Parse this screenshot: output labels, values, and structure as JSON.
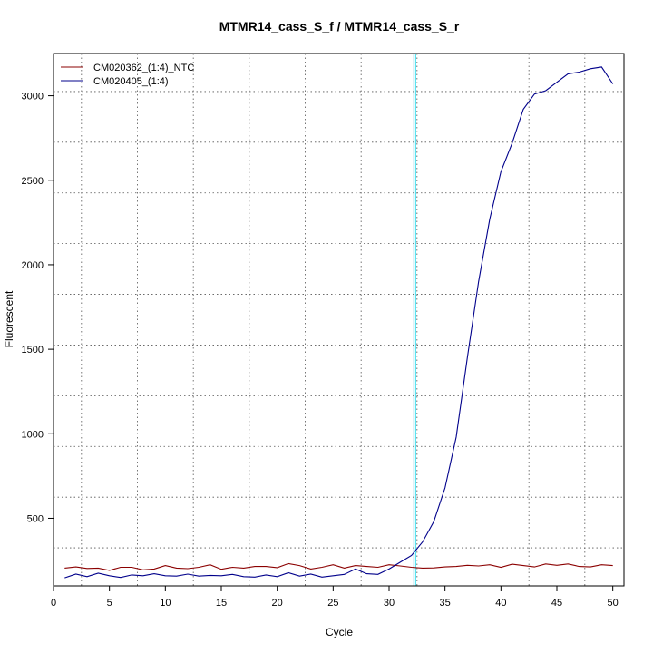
{
  "chart_data": {
    "type": "line",
    "title": "MTMR14_cass_S_f / MTMR14_cass_S_r",
    "xlabel": "Cycle",
    "ylabel": "Fluorescent",
    "xlim": [
      0,
      51
    ],
    "ylim": [
      100,
      3250
    ],
    "x_ticks": [
      "0",
      "5",
      "10",
      "15",
      "20",
      "25",
      "30",
      "35",
      "40",
      "45",
      "50"
    ],
    "y_ticks": [
      "500",
      "1000",
      "1500",
      "2000",
      "2500",
      "3000"
    ],
    "grid": true,
    "legend_position": "top-left",
    "threshold_cycle": 32.3,
    "x": [
      1,
      2,
      3,
      4,
      5,
      6,
      7,
      8,
      9,
      10,
      11,
      12,
      13,
      14,
      15,
      16,
      17,
      18,
      19,
      20,
      21,
      22,
      23,
      24,
      25,
      26,
      27,
      28,
      29,
      30,
      31,
      32,
      33,
      34,
      35,
      36,
      37,
      38,
      39,
      40,
      41,
      42,
      43,
      44,
      45,
      46,
      47,
      48,
      49,
      50
    ],
    "series": [
      {
        "name": "CM020362_(1:4)_NTC",
        "color": "#8b0000",
        "values": [
          205,
          212,
          203,
          205,
          192,
          210,
          210,
          195,
          200,
          220,
          205,
          202,
          210,
          225,
          198,
          210,
          205,
          215,
          215,
          208,
          232,
          220,
          200,
          210,
          225,
          205,
          220,
          215,
          210,
          225,
          218,
          210,
          205,
          206,
          212,
          215,
          222,
          218,
          225,
          210,
          228,
          220,
          212,
          230,
          222,
          230,
          215,
          212,
          225,
          220
        ]
      },
      {
        "name": "CM020405_(1:4)",
        "color": "#00008b",
        "values": [
          148,
          170,
          155,
          175,
          160,
          150,
          165,
          160,
          172,
          160,
          158,
          170,
          158,
          162,
          160,
          168,
          155,
          152,
          165,
          155,
          178,
          158,
          170,
          152,
          160,
          168,
          200,
          172,
          168,
          200,
          240,
          280,
          360,
          480,
          680,
          980,
          1450,
          1900,
          2270,
          2550,
          2720,
          2920,
          3010,
          3030,
          3080,
          3130,
          3140,
          3160,
          3170,
          3070
        ]
      }
    ]
  },
  "legend": {
    "item1": "CM020362_(1:4)_NTC",
    "item2": "CM020405_(1:4)"
  }
}
